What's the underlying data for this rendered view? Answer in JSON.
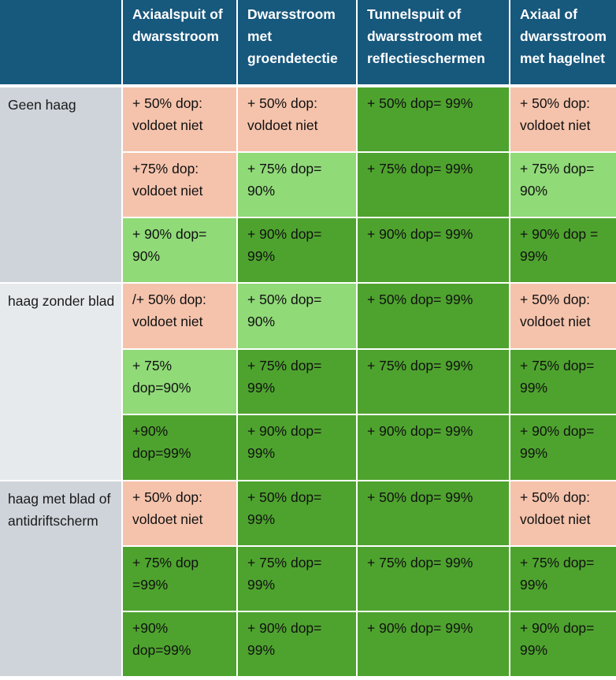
{
  "colors": {
    "header_bg": "#17587d",
    "salmon_voldoet_niet": "#f5c3ac",
    "light_green_90": "#90da78",
    "dark_green_99": "#4ea32e",
    "row_label_gray": "#cfd4db",
    "row_label_light_gray": "#e7eaed"
  },
  "headers": [
    "",
    "Axiaalspuit of dwarsstroom",
    "Dwarsstroom met groendetectie",
    "Tunnelspuit of dwarsstroom met reflectieschermen",
    "Axiaal of dwarsstroom met hagelnet"
  ],
  "groups": [
    {
      "label": "Geen haag",
      "rows": [
        [
          {
            "text": "+ 50% dop: voldoet niet",
            "level": "none"
          },
          {
            "text": "+ 50% dop: voldoet niet",
            "level": "none"
          },
          {
            "text": "+ 50% dop= 99%",
            "level": "dark"
          },
          {
            "text": "+ 50% dop: voldoet niet",
            "level": "none"
          }
        ],
        [
          {
            "text": "+75% dop: voldoet niet",
            "level": "none"
          },
          {
            "text": "+ 75% dop= 90%",
            "level": "light"
          },
          {
            "text": "+ 75% dop= 99%",
            "level": "dark"
          },
          {
            "text": "+ 75% dop= 90%",
            "level": "light"
          }
        ],
        [
          {
            "text": "+ 90% dop= 90%",
            "level": "light"
          },
          {
            "text": "+ 90% dop= 99%",
            "level": "dark"
          },
          {
            "text": "+ 90% dop= 99%",
            "level": "dark"
          },
          {
            "text": "+ 90% dop = 99%",
            "level": "dark"
          }
        ]
      ]
    },
    {
      "label": "haag zonder blad",
      "rows": [
        [
          {
            "text": "/+ 50% dop: voldoet niet",
            "level": "none"
          },
          {
            "text": "+ 50% dop= 90%",
            "level": "light"
          },
          {
            "text": "+ 50% dop= 99%",
            "level": "dark"
          },
          {
            "text": "+ 50% dop: voldoet niet",
            "level": "none"
          }
        ],
        [
          {
            "text": "+ 75% dop=90%",
            "level": "light"
          },
          {
            "text": "+ 75% dop= 99%",
            "level": "dark"
          },
          {
            "text": "+ 75% dop= 99%",
            "level": "dark"
          },
          {
            "text": "+ 75% dop= 99%",
            "level": "dark"
          }
        ],
        [
          {
            "text": "+90% dop=99%",
            "level": "dark"
          },
          {
            "text": "+ 90% dop= 99%",
            "level": "dark"
          },
          {
            "text": "+ 90% dop= 99%",
            "level": "dark"
          },
          {
            "text": "+ 90% dop= 99%",
            "level": "dark"
          }
        ]
      ]
    },
    {
      "label": "haag met blad of antidriftscherm",
      "rows": [
        [
          {
            "text": "+ 50% dop: voldoet niet",
            "level": "none"
          },
          {
            "text": "+ 50% dop= 99%",
            "level": "dark"
          },
          {
            "text": "+ 50% dop= 99%",
            "level": "dark"
          },
          {
            "text": "+ 50% dop: voldoet niet",
            "level": "none"
          }
        ],
        [
          {
            "text": "+ 75% dop =99%",
            "level": "dark"
          },
          {
            "text": "+ 75% dop= 99%",
            "level": "dark"
          },
          {
            "text": "+ 75% dop= 99%",
            "level": "dark"
          },
          {
            "text": "+ 75% dop= 99%",
            "level": "dark"
          }
        ],
        [
          {
            "text": "+90% dop=99%",
            "level": "dark"
          },
          {
            "text": "+ 90% dop= 99%",
            "level": "dark"
          },
          {
            "text": "+ 90% dop= 99%",
            "level": "dark"
          },
          {
            "text": "+ 90% dop= 99%",
            "level": "dark"
          }
        ]
      ]
    }
  ]
}
